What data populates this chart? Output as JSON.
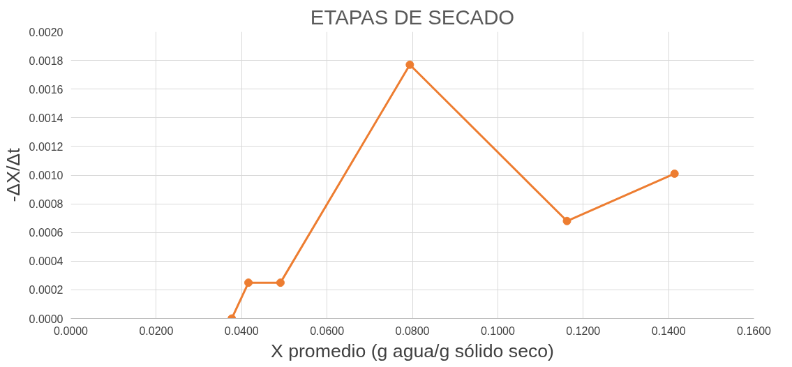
{
  "chart_data": {
    "type": "line",
    "title": "ETAPAS DE SECADO",
    "xlabel": "X promedio (g agua/g sólido seco)",
    "ylabel": "-ΔX/Δt",
    "x": [
      0.0377,
      0.0416,
      0.0491,
      0.0794,
      0.1162,
      0.1414
    ],
    "series": [
      {
        "color": "#ed7d31",
        "values": [
          0.0,
          0.00025,
          0.00025,
          0.00177,
          0.00068,
          0.00101
        ]
      }
    ],
    "xlim": [
      0,
      0.16
    ],
    "ylim": [
      0,
      0.002
    ],
    "xticks": [
      {
        "value": 0,
        "label": "0.0000"
      },
      {
        "value": 0.02,
        "label": "0.0200"
      },
      {
        "value": 0.04,
        "label": "0.0400"
      },
      {
        "value": 0.06,
        "label": "0.0600"
      },
      {
        "value": 0.08,
        "label": "0.0800"
      },
      {
        "value": 0.1,
        "label": "0.1000"
      },
      {
        "value": 0.12,
        "label": "0.1200"
      },
      {
        "value": 0.14,
        "label": "0.1400"
      },
      {
        "value": 0.16,
        "label": "0.1600"
      }
    ],
    "yticks": [
      {
        "value": 0,
        "label": "0.0000"
      },
      {
        "value": 0.0002,
        "label": "0.0002"
      },
      {
        "value": 0.0004,
        "label": "0.0004"
      },
      {
        "value": 0.0006,
        "label": "0.0006"
      },
      {
        "value": 0.0008,
        "label": "0.0008"
      },
      {
        "value": 0.001,
        "label": "0.0010"
      },
      {
        "value": 0.0012,
        "label": "0.0012"
      },
      {
        "value": 0.0014,
        "label": "0.0014"
      },
      {
        "value": 0.0016,
        "label": "0.0016"
      },
      {
        "value": 0.0018,
        "label": "0.0018"
      },
      {
        "value": 0.002,
        "label": "0.0020"
      }
    ],
    "grid": true,
    "marker": "circle",
    "line_style": "solid"
  }
}
